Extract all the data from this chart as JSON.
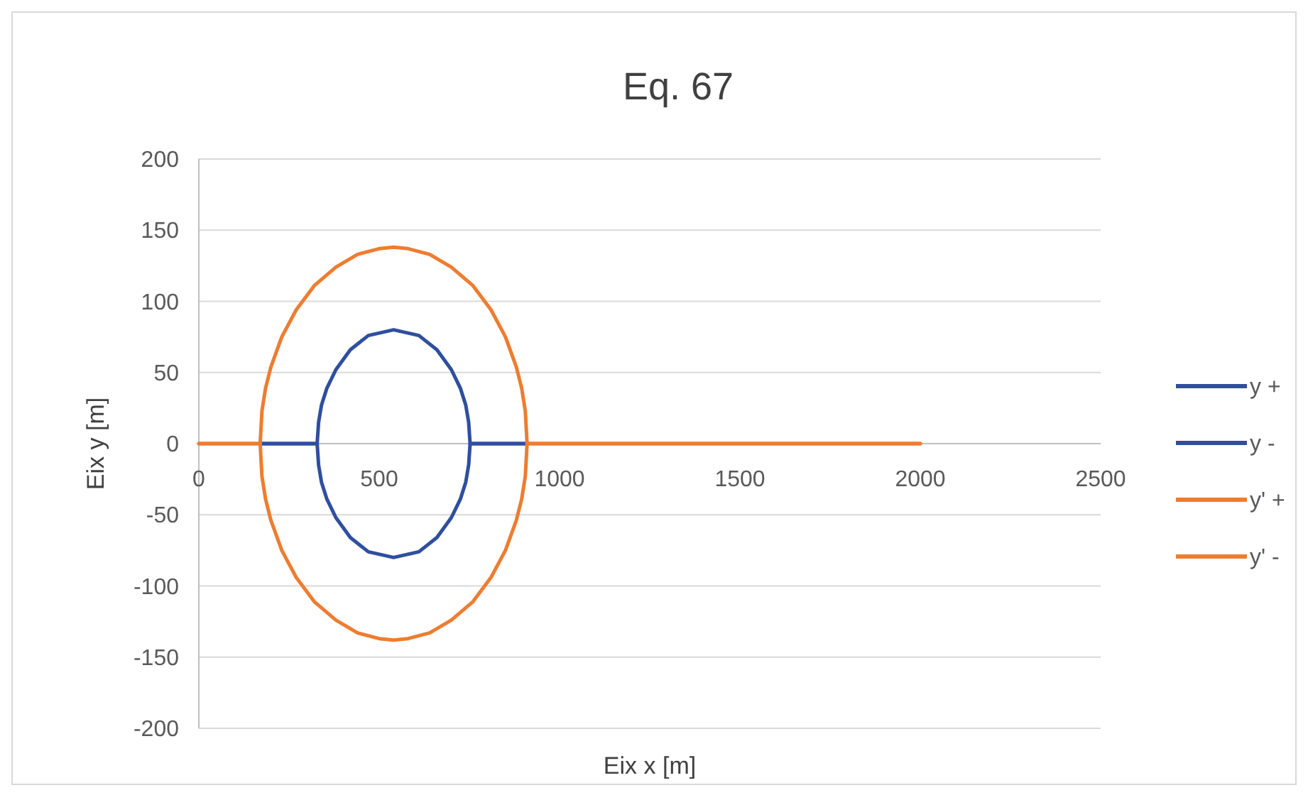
{
  "chart_data": {
    "type": "line",
    "title": "Eq. 67",
    "xlabel": "Eix x [m]",
    "ylabel": "Eix y [m]",
    "xlim": [
      0,
      2500
    ],
    "xticks": [
      0,
      500,
      1000,
      1500,
      2000,
      2500
    ],
    "ylim": [
      -200,
      200
    ],
    "yticks": [
      -200,
      -150,
      -100,
      -50,
      0,
      50,
      100,
      150,
      200
    ],
    "grid": "y",
    "legend": "right",
    "line_style": "solid",
    "series": [
      {
        "name": "y +",
        "color": "#2f4f9e",
        "x": [
          170,
          328,
          332,
          340,
          355,
          380,
          420,
          470,
          540,
          610,
          660,
          700,
          725,
          740,
          748,
          752,
          910
        ],
        "values": [
          0,
          0,
          15,
          27,
          39,
          52,
          66,
          76,
          80,
          76,
          66,
          52,
          39,
          27,
          15,
          0,
          0
        ]
      },
      {
        "name": "y -",
        "color": "#2f4f9e",
        "x": [
          170,
          328,
          332,
          340,
          355,
          380,
          420,
          470,
          540,
          610,
          660,
          700,
          725,
          740,
          748,
          752,
          910
        ],
        "values": [
          0,
          0,
          -15,
          -27,
          -39,
          -52,
          -66,
          -76,
          -80,
          -76,
          -66,
          -52,
          -39,
          -27,
          -15,
          0,
          0
        ]
      },
      {
        "name": "y' +",
        "color": "#ed7d31",
        "x": [
          0,
          100,
          170,
          175,
          185,
          200,
          230,
          270,
          320,
          380,
          440,
          500,
          540,
          580,
          640,
          700,
          760,
          810,
          850,
          880,
          895,
          905,
          910,
          1000,
          1500,
          2000
        ],
        "values": [
          0,
          0,
          0,
          23,
          39,
          54,
          75,
          94,
          111,
          124,
          133,
          137,
          138,
          137,
          133,
          124,
          111,
          94,
          75,
          54,
          39,
          23,
          0,
          0,
          0,
          0
        ]
      },
      {
        "name": "y' -",
        "color": "#ed7d31",
        "x": [
          0,
          100,
          170,
          175,
          185,
          200,
          230,
          270,
          320,
          380,
          440,
          500,
          540,
          580,
          640,
          700,
          760,
          810,
          850,
          880,
          895,
          905,
          910,
          1000,
          1500,
          2000
        ],
        "values": [
          0,
          0,
          0,
          -23,
          -39,
          -54,
          -75,
          -94,
          -111,
          -124,
          -133,
          -137,
          -138,
          -137,
          -133,
          -124,
          -111,
          -94,
          -75,
          -54,
          -39,
          -23,
          0,
          0,
          0,
          0
        ]
      }
    ]
  }
}
